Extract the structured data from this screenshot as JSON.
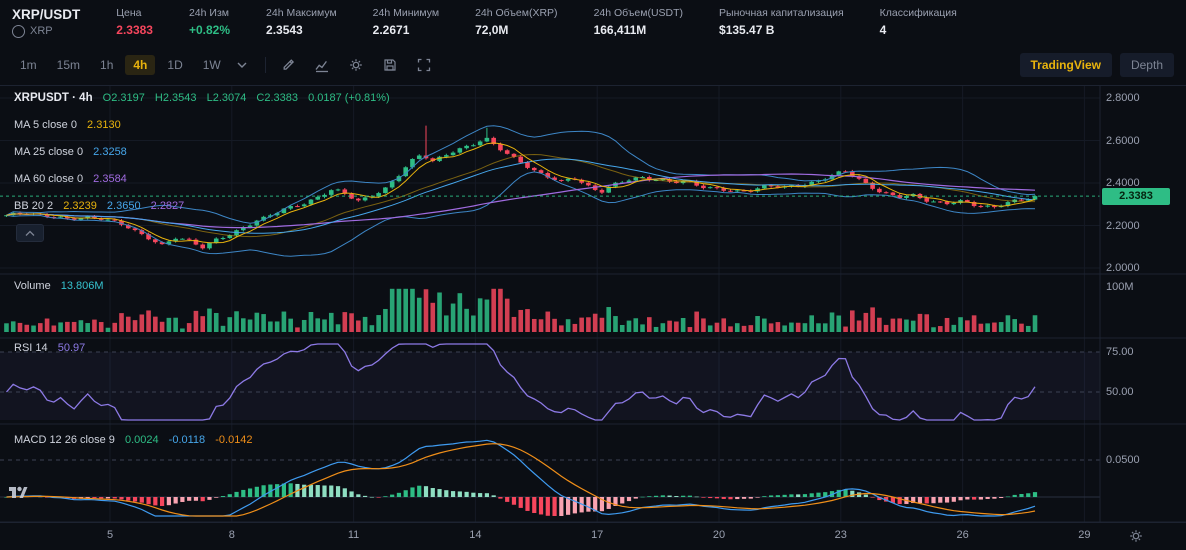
{
  "header": {
    "symbol": "XRP/USDT",
    "base": "XRP",
    "stats": [
      {
        "label": "Цена",
        "value": "2.3383"
      },
      {
        "label": "24h Изм",
        "value": "+0.82%"
      },
      {
        "label": "24h Максимум",
        "value": "2.3543"
      },
      {
        "label": "24h Минимум",
        "value": "2.2671"
      },
      {
        "label": "24h Объем(XRP)",
        "value": "72,0M"
      },
      {
        "label": "24h Объем(USDT)",
        "value": "166,411M"
      },
      {
        "label": "Рыночная капитализация",
        "value": "$135.47 B"
      },
      {
        "label": "Классификация",
        "value": "4"
      }
    ]
  },
  "toolbar": {
    "timeframes": [
      "1m",
      "15m",
      "1h",
      "4h",
      "1D",
      "1W"
    ],
    "active": "4h",
    "buttons": {
      "tradingview": "TradingView",
      "depth": "Depth"
    }
  },
  "legend": {
    "title": "XRPUSDT · 4h",
    "o": "O2.3197",
    "h": "H2.3543",
    "l": "L2.3074",
    "c": "C2.3383",
    "change": "0.0187 (+0.81%)",
    "ma5_label": "MA 5 close 0",
    "ma5_value": "2.3130",
    "ma25_label": "MA 25 close 0",
    "ma25_value": "2.3258",
    "ma60_label": "MA 60 close 0",
    "ma60_value": "2.3584",
    "bb_label": "BB 20 2",
    "bb_mid": "2.3239",
    "bb_upper": "2.3650",
    "bb_lower": "2.2827"
  },
  "panes": {
    "volume_label": "Volume",
    "volume_value": "13.806M",
    "volume_scale": "100M",
    "rsi_label": "RSI 14",
    "rsi_value": "50.97",
    "rsi_levels": [
      "75.00",
      "50.00"
    ],
    "macd_label": "MACD 12 26 close 9",
    "macd_hist": "0.0024",
    "macd_dif": "-0.0118",
    "macd_dea": "-0.0142",
    "macd_scale": "0.0500"
  },
  "price_axis": {
    "labels": [
      "2.8000",
      "2.6000",
      "2.4000",
      "2.2000",
      "2.0000"
    ],
    "last": "2.3383"
  },
  "time_axis": [
    "5",
    "8",
    "11",
    "14",
    "17",
    "20",
    "23",
    "26",
    "29"
  ],
  "colors": {
    "bg": "#0b0e14",
    "border": "#1d2331",
    "grid": "#151a25",
    "dashed": "#3c4254",
    "text": "#e8eaf0",
    "muted": "#7d8494",
    "label": "#9aa0b0",
    "green": "#2ebd85",
    "red": "#f6465d",
    "yellow": "#e8b30d",
    "blue": "#46a6ea",
    "purple": "#a06be0",
    "orange": "#ef8e19",
    "teal": "#36c3cf",
    "rsi": "#8d7ae6",
    "bb_band": "#3d86c6",
    "macd_blue": "#3f9bf0",
    "macd_orange": "#ef8e19",
    "hist_up": "#2ebd85",
    "hist_up_light": "#8fdec2",
    "hist_dn": "#f6465d",
    "hist_dn_light": "#f9a3b1"
  },
  "chart_data": {
    "type": "candlestick",
    "symbol": "XRPUSDT",
    "interval": "4h",
    "ohlc_current": {
      "open": 2.3197,
      "high": 2.3543,
      "low": 2.3074,
      "close": 2.3383,
      "change": 0.0187,
      "change_pct": 0.81
    },
    "indicators": {
      "ma5": 2.313,
      "ma25": 2.3258,
      "ma60": 2.3584,
      "bb_mid": 2.3239,
      "bb_upper": 2.365,
      "bb_lower": 2.2827,
      "rsi14": 50.97,
      "volume_current": "13.806M",
      "macd": [
        0.0024,
        -0.0118,
        -0.0142
      ]
    },
    "price_gridlines": [
      2.0,
      2.2,
      2.4,
      2.6,
      2.8
    ],
    "price_axis_range": [
      2.0,
      2.8
    ],
    "x_axis_days": [
      5,
      8,
      11,
      14,
      17,
      20,
      23,
      26,
      29
    ],
    "last_price": 2.3383,
    "domain_days": [
      2.45,
      27.8
    ],
    "candle_step_days": 0.166667,
    "close_path": [
      [
        2.45,
        2.245
      ],
      [
        3.0,
        2.26
      ],
      [
        3.5,
        2.245
      ],
      [
        4.0,
        2.225
      ],
      [
        4.4,
        2.24
      ],
      [
        4.8,
        2.235
      ],
      [
        5.2,
        2.21
      ],
      [
        5.6,
        2.175
      ],
      [
        6.0,
        2.14
      ],
      [
        6.3,
        2.105
      ],
      [
        6.6,
        2.14
      ],
      [
        7.0,
        2.125
      ],
      [
        7.3,
        2.1
      ],
      [
        7.6,
        2.135
      ],
      [
        8.0,
        2.155
      ],
      [
        8.3,
        2.19
      ],
      [
        8.6,
        2.225
      ],
      [
        9.0,
        2.255
      ],
      [
        9.4,
        2.28
      ],
      [
        9.8,
        2.305
      ],
      [
        10.2,
        2.345
      ],
      [
        10.5,
        2.37
      ],
      [
        10.8,
        2.345
      ],
      [
        11.1,
        2.315
      ],
      [
        11.4,
        2.34
      ],
      [
        11.8,
        2.375
      ],
      [
        12.1,
        2.43
      ],
      [
        12.4,
        2.5
      ],
      [
        12.7,
        2.545
      ],
      [
        12.9,
        2.5
      ],
      [
        13.2,
        2.525
      ],
      [
        13.6,
        2.555
      ],
      [
        14.0,
        2.59
      ],
      [
        14.25,
        2.615
      ],
      [
        14.5,
        2.575
      ],
      [
        14.8,
        2.53
      ],
      [
        15.1,
        2.5
      ],
      [
        15.4,
        2.465
      ],
      [
        15.8,
        2.43
      ],
      [
        16.1,
        2.4
      ],
      [
        16.4,
        2.425
      ],
      [
        16.8,
        2.385
      ],
      [
        17.1,
        2.36
      ],
      [
        17.4,
        2.39
      ],
      [
        17.8,
        2.415
      ],
      [
        18.1,
        2.43
      ],
      [
        18.5,
        2.415
      ],
      [
        18.9,
        2.4
      ],
      [
        19.2,
        2.41
      ],
      [
        19.6,
        2.385
      ],
      [
        20.0,
        2.37
      ],
      [
        20.4,
        2.355
      ],
      [
        20.8,
        2.37
      ],
      [
        21.2,
        2.39
      ],
      [
        21.6,
        2.375
      ],
      [
        22.0,
        2.39
      ],
      [
        22.4,
        2.41
      ],
      [
        22.8,
        2.435
      ],
      [
        23.1,
        2.455
      ],
      [
        23.4,
        2.425
      ],
      [
        23.7,
        2.39
      ],
      [
        24.0,
        2.355
      ],
      [
        24.4,
        2.33
      ],
      [
        24.8,
        2.345
      ],
      [
        25.2,
        2.315
      ],
      [
        25.6,
        2.3
      ],
      [
        26.0,
        2.315
      ],
      [
        26.4,
        2.295
      ],
      [
        26.8,
        2.285
      ],
      [
        27.2,
        2.31
      ],
      [
        27.5,
        2.325
      ],
      [
        27.8,
        2.3383
      ]
    ],
    "wick_spikes": [
      {
        "day": 12.72,
        "high": 2.67
      },
      {
        "day": 14.3,
        "high": 2.66
      }
    ],
    "volume": {
      "base_m": 7,
      "spike_day": 12.72,
      "spike_value_m": 95,
      "scale_max_m": 100,
      "boost_range_days": [
        11.8,
        14.8
      ]
    },
    "rsi_levels_values": [
      75,
      50
    ],
    "macd_scale_value": 0.05
  }
}
